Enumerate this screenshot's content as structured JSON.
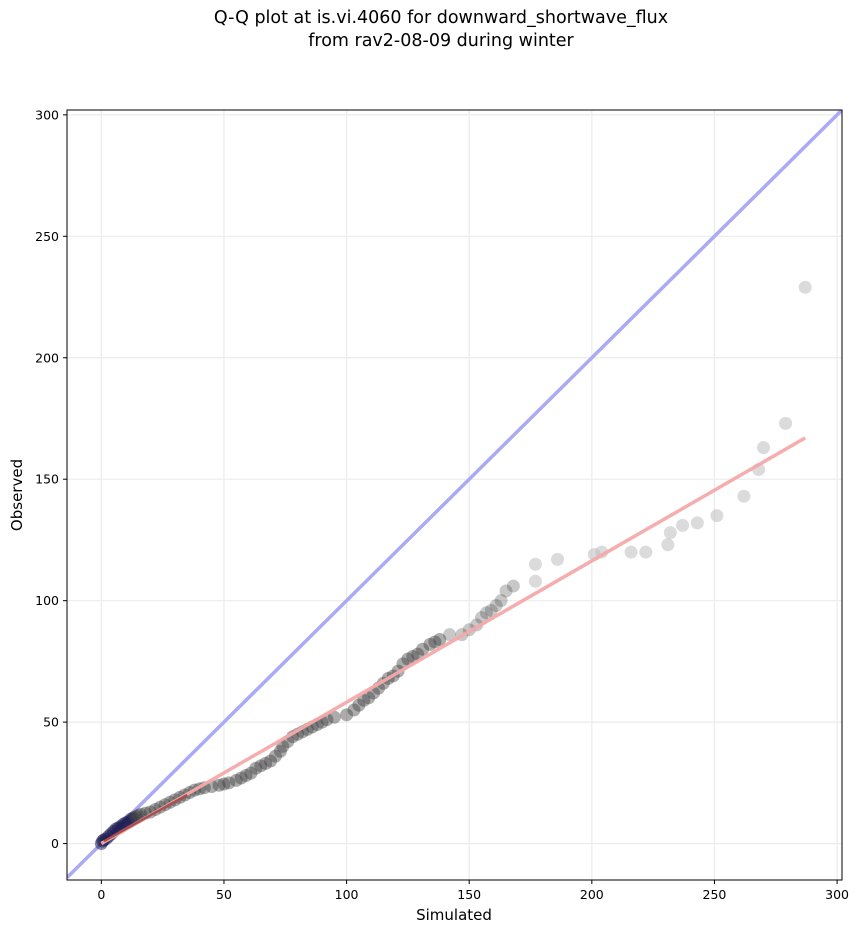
{
  "chart_data": {
    "type": "scatter",
    "title_lines": [
      "Q-Q plot at is.vi.4060 for downward_shortwave_flux",
      "from rav2-08-09 during winter"
    ],
    "xlabel": "Simulated",
    "ylabel": "Observed",
    "xlim": [
      -14,
      302
    ],
    "ylim": [
      -15,
      302
    ],
    "x_ticks": [
      0,
      50,
      100,
      150,
      200,
      250,
      300
    ],
    "y_ticks": [
      0,
      50,
      100,
      150,
      200,
      250,
      300
    ],
    "grid": true,
    "reference_line": {
      "name": "1:1",
      "color": "#aaaaf5",
      "points": [
        [
          -14,
          -14
        ],
        [
          302,
          302
        ]
      ]
    },
    "fit_line": {
      "color": "#f4a9a9",
      "points": [
        [
          0,
          0
        ],
        [
          287,
          167
        ]
      ]
    },
    "colors": {
      "points_light": "#bdbdbd",
      "points_dark": "#3a3a3a",
      "points_low": "#1a1a50",
      "low_trace": "#7a1818"
    },
    "points": [
      [
        0,
        0
      ],
      [
        0.5,
        1
      ],
      [
        1,
        1.5
      ],
      [
        2,
        2
      ],
      [
        3,
        3
      ],
      [
        4,
        4
      ],
      [
        5,
        5
      ],
      [
        6,
        6
      ],
      [
        7,
        6.5
      ],
      [
        8,
        7
      ],
      [
        9,
        8
      ],
      [
        10,
        8.5
      ],
      [
        11,
        9
      ],
      [
        12,
        10
      ],
      [
        13,
        10.5
      ],
      [
        14,
        11
      ],
      [
        15,
        11.5
      ],
      [
        16,
        12
      ],
      [
        18,
        12.5
      ],
      [
        20,
        13
      ],
      [
        22,
        14
      ],
      [
        24,
        15
      ],
      [
        26,
        16
      ],
      [
        28,
        17
      ],
      [
        30,
        18
      ],
      [
        32,
        19
      ],
      [
        34,
        20
      ],
      [
        36,
        21
      ],
      [
        38,
        22
      ],
      [
        40,
        22.5
      ],
      [
        42,
        23
      ],
      [
        45,
        23.5
      ],
      [
        48,
        24
      ],
      [
        50,
        24.5
      ],
      [
        52,
        25
      ],
      [
        55,
        26
      ],
      [
        57,
        27
      ],
      [
        59,
        28
      ],
      [
        61,
        29
      ],
      [
        63,
        31
      ],
      [
        65,
        32
      ],
      [
        67,
        33
      ],
      [
        69,
        34
      ],
      [
        71,
        36
      ],
      [
        73,
        38
      ],
      [
        74,
        40
      ],
      [
        76,
        42
      ],
      [
        78,
        44
      ],
      [
        80,
        45
      ],
      [
        82,
        46
      ],
      [
        84,
        47
      ],
      [
        86,
        48
      ],
      [
        88,
        49
      ],
      [
        90,
        50
      ],
      [
        92,
        51
      ],
      [
        95,
        52
      ],
      [
        100,
        53
      ],
      [
        103,
        55
      ],
      [
        105,
        57
      ],
      [
        107,
        59
      ],
      [
        109,
        60
      ],
      [
        111,
        62
      ],
      [
        113,
        64
      ],
      [
        115,
        66
      ],
      [
        117,
        68
      ],
      [
        119,
        69
      ],
      [
        121,
        71
      ],
      [
        123,
        74
      ],
      [
        125,
        76
      ],
      [
        127,
        77
      ],
      [
        129,
        78
      ],
      [
        131,
        80
      ],
      [
        134,
        82
      ],
      [
        136,
        83
      ],
      [
        138,
        84
      ],
      [
        142,
        86
      ],
      [
        147,
        86
      ],
      [
        150,
        88
      ],
      [
        153,
        90
      ],
      [
        155,
        93
      ],
      [
        157,
        95
      ],
      [
        159,
        96
      ],
      [
        161,
        98
      ],
      [
        163,
        100
      ],
      [
        165,
        104
      ],
      [
        168,
        106
      ],
      [
        177,
        108
      ],
      [
        177,
        115
      ],
      [
        186,
        117
      ],
      [
        201,
        119
      ],
      [
        204,
        120
      ],
      [
        216,
        120
      ],
      [
        222,
        120
      ],
      [
        231,
        123
      ],
      [
        232,
        128
      ],
      [
        237,
        131
      ],
      [
        243,
        132
      ],
      [
        251,
        135
      ],
      [
        262,
        143
      ],
      [
        268,
        154
      ],
      [
        270,
        163
      ],
      [
        279,
        173
      ],
      [
        287,
        229
      ]
    ]
  }
}
